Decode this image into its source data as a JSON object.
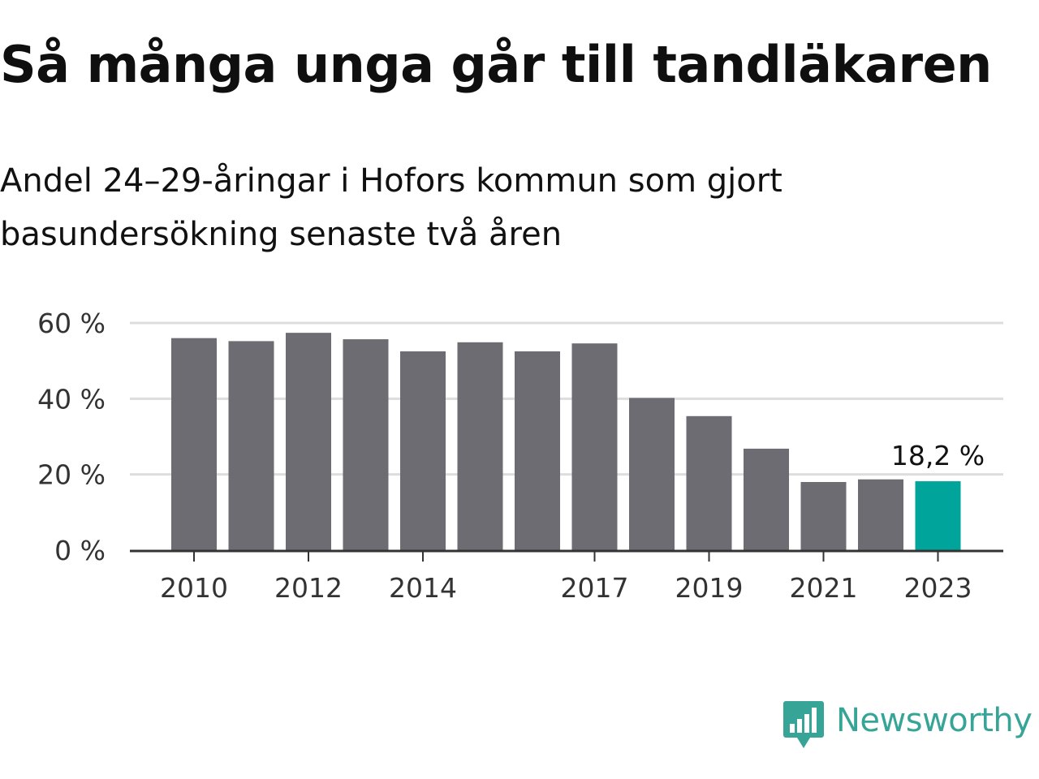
{
  "header": {
    "title": "Så många unga går till tandläkaren",
    "subtitle": "Andel 24–29-åringar i Hofors kommun som gjort basundersökning senaste två åren"
  },
  "chart_data": {
    "type": "bar",
    "categories": [
      "2010",
      "2011",
      "2012",
      "2013",
      "2014",
      "2015",
      "2016",
      "2017",
      "2018",
      "2019",
      "2020",
      "2021",
      "2022",
      "2023"
    ],
    "tick_labels": [
      "2010",
      "2012",
      "2014",
      "2017",
      "2019",
      "2021",
      "2023"
    ],
    "values": [
      56.0,
      55.2,
      57.4,
      55.7,
      52.5,
      54.9,
      52.5,
      54.6,
      40.2,
      35.4,
      26.8,
      18.0,
      18.7,
      18.2
    ],
    "ylim": [
      0,
      60
    ],
    "yticks": [
      0,
      20,
      40,
      60
    ],
    "ytick_labels": [
      "0 %",
      "20 %",
      "40 %",
      "60 %"
    ],
    "grid": true,
    "highlight_label": "18,2 %",
    "colors": {
      "bar": "#6d6c72",
      "highlight": "#00a49b",
      "grid": "#dddddd",
      "axis": "#333333"
    }
  },
  "brand": {
    "name": "Newsworthy",
    "icon": "newsworthy-logo-icon",
    "color": "#36a597"
  }
}
